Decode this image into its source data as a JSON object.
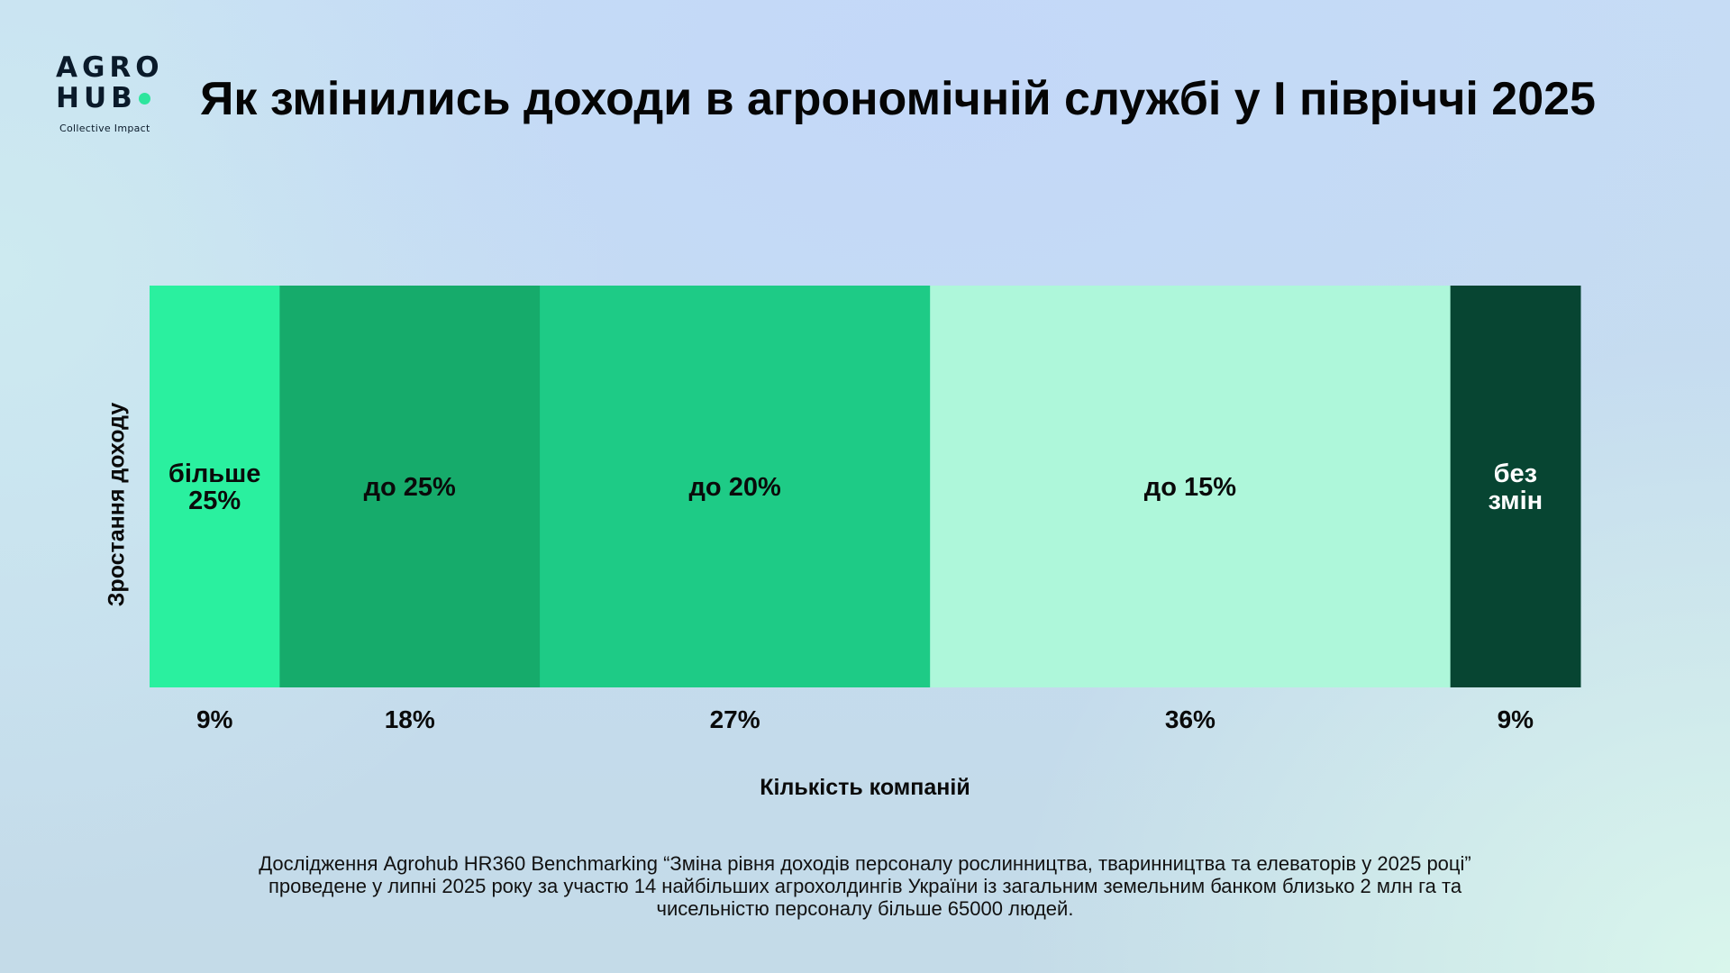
{
  "logo": {
    "line1": "AGRO",
    "line2": "HUB",
    "tagline": "Collective Impact",
    "dot_color": "#2ee59d"
  },
  "header": {
    "title": "Як змінились доходи в агрономічній службі у І півріччі 2025"
  },
  "chart_data": {
    "type": "bar",
    "stacked": true,
    "orientation": "horizontal",
    "title": "Як змінились доходи в агрономічній службі у І півріччі 2025",
    "xlabel": "Кількість компаній",
    "ylabel": "Зростання доходу",
    "xlim": [
      0,
      100
    ],
    "categories": [
      "більше 25%",
      "до 25%",
      "до 20%",
      "до 15%",
      "без змін"
    ],
    "values": [
      9,
      18,
      27,
      36,
      9
    ],
    "value_labels": [
      "9%",
      "18%",
      "27%",
      "36%",
      "9%"
    ],
    "colors": [
      "#2af09f",
      "#16ab6b",
      "#1ecb86",
      "#aef7da",
      "#074532"
    ],
    "label_colors": [
      "#0a0a0a",
      "#0a0a0a",
      "#0a0a0a",
      "#0a0a0a",
      "#ffffff"
    ],
    "grid": false,
    "legend": "none"
  },
  "footnote": "Дослідження Agrohub HR360 Benchmarking “Зміна рівня доходів персоналу рослинництва, тваринництва та елеваторів у 2025 році” проведене у липні 2025 року за участю 14 найбільших агрохолдингів України із загальним земельним банком близько 2 млн га та чисельністю персоналу більше 65000 людей."
}
